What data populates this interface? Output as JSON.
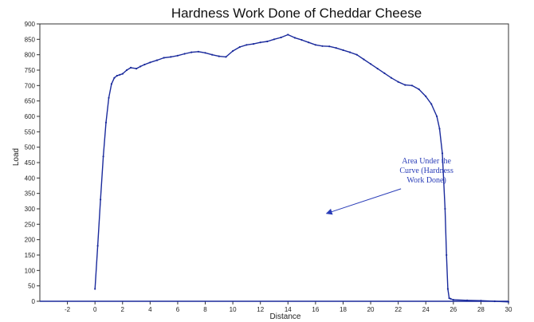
{
  "chart_data": {
    "type": "line",
    "title": "Hardness Work Done of Cheddar Cheese",
    "xlabel": "Distance",
    "ylabel": "Load",
    "xlim": [
      -4,
      30
    ],
    "ylim": [
      0,
      900
    ],
    "xticks": [
      -2,
      0,
      2,
      4,
      6,
      8,
      10,
      12,
      14,
      16,
      18,
      20,
      22,
      24,
      26,
      28,
      30
    ],
    "yticks": [
      0,
      50,
      100,
      150,
      200,
      250,
      300,
      350,
      400,
      450,
      500,
      550,
      600,
      650,
      700,
      750,
      800,
      850,
      900
    ],
    "grid": false,
    "legend": "none",
    "series_color": "#1a2a9c",
    "annotation_color": "#2a3db8",
    "series": [
      {
        "x": [
          0,
          0.2,
          0.4,
          0.6,
          0.8,
          1.0,
          1.2,
          1.4,
          1.6,
          1.8,
          2.0,
          2.3,
          2.6,
          3.0,
          3.3,
          3.6,
          4.0,
          4.5,
          5.0,
          5.5,
          6.0,
          6.5,
          7.0,
          7.5,
          8.0,
          8.5,
          9.0,
          9.5,
          10.0,
          10.5,
          11.0,
          11.5,
          12.0,
          12.5,
          13.0,
          13.5,
          14.0,
          14.5,
          15.0,
          15.5,
          16.0,
          16.5,
          17.0,
          17.5,
          18.0,
          18.5,
          19.0,
          19.5,
          20.0,
          20.5,
          21.0,
          21.5,
          22.0,
          22.5,
          23.0,
          23.5,
          24.0,
          24.4,
          24.8,
          25.0,
          25.2,
          25.4,
          25.5,
          25.6,
          25.7,
          25.8,
          26.0,
          27.0,
          28.0,
          29.0,
          30.0
        ],
        "y": [
          40,
          180,
          330,
          470,
          580,
          660,
          705,
          725,
          732,
          735,
          738,
          750,
          758,
          755,
          762,
          768,
          775,
          782,
          790,
          793,
          797,
          803,
          808,
          810,
          806,
          800,
          795,
          793,
          812,
          825,
          832,
          835,
          840,
          843,
          850,
          856,
          865,
          855,
          848,
          840,
          832,
          828,
          827,
          822,
          815,
          808,
          800,
          785,
          770,
          755,
          740,
          725,
          712,
          702,
          700,
          688,
          665,
          640,
          600,
          560,
          480,
          300,
          150,
          40,
          10,
          8,
          5,
          3,
          2,
          0,
          -2
        ]
      },
      {
        "x": [
          -4,
          30
        ],
        "y": [
          0,
          0
        ]
      }
    ],
    "annotation": {
      "lines": [
        "Area Under the",
        "Curve (Hardness",
        "Work Done)"
      ],
      "arrow_from": [
        22.2,
        365
      ],
      "arrow_to": [
        16.8,
        285
      ]
    }
  }
}
